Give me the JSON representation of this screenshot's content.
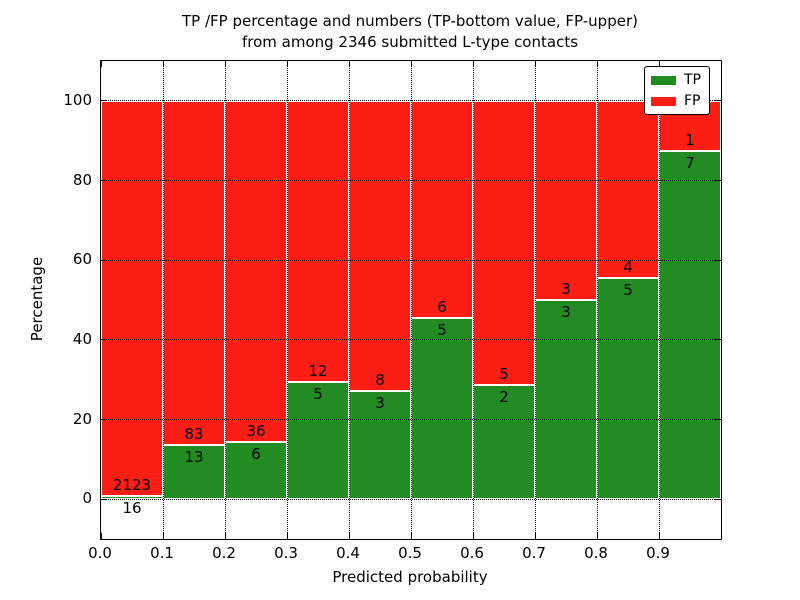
{
  "title": {
    "line1": "TP /FP percentage and numbers (TP-bottom value, FP-upper)",
    "line2": "from among 2346 submitted L-type contacts"
  },
  "axes": {
    "xlabel": "Predicted probability",
    "ylabel": "Percentage"
  },
  "legend": {
    "items": [
      {
        "label": "TP",
        "color": "#228b22"
      },
      {
        "label": "FP",
        "color": "#fb1e14"
      }
    ]
  },
  "chart_data": {
    "type": "bar",
    "stacked": true,
    "normalized_to_percent": 100,
    "title": "TP /FP percentage and numbers (TP-bottom value, FP-upper) from among 2346 submitted L-type contacts",
    "xlabel": "Predicted probability",
    "ylabel": "Percentage",
    "total_contacts": 2346,
    "bins_start": [
      0.0,
      0.1,
      0.2,
      0.3,
      0.4,
      0.5,
      0.6,
      0.7,
      0.8,
      0.9
    ],
    "bin_width": 0.1,
    "series": [
      {
        "name": "TP",
        "color": "#228b22",
        "counts": [
          16,
          13,
          6,
          5,
          3,
          5,
          2,
          3,
          5,
          7
        ]
      },
      {
        "name": "FP",
        "color": "#fb1e14",
        "counts": [
          2123,
          83,
          36,
          12,
          8,
          6,
          5,
          3,
          4,
          1
        ]
      }
    ],
    "tp_percent": [
      0.75,
      13.54,
      14.29,
      29.41,
      27.27,
      45.45,
      28.57,
      50.0,
      55.56,
      87.5
    ],
    "xticks": [
      "0.0",
      "0.1",
      "0.2",
      "0.3",
      "0.4",
      "0.5",
      "0.6",
      "0.7",
      "0.8",
      "0.9"
    ],
    "yticks": [
      "0",
      "20",
      "40",
      "60",
      "80",
      "100"
    ],
    "xlim": [
      0.0,
      1.0
    ],
    "ylim": [
      -10,
      110
    ],
    "grid": "dotted-black-over-bars",
    "legend_position": "upper right"
  }
}
